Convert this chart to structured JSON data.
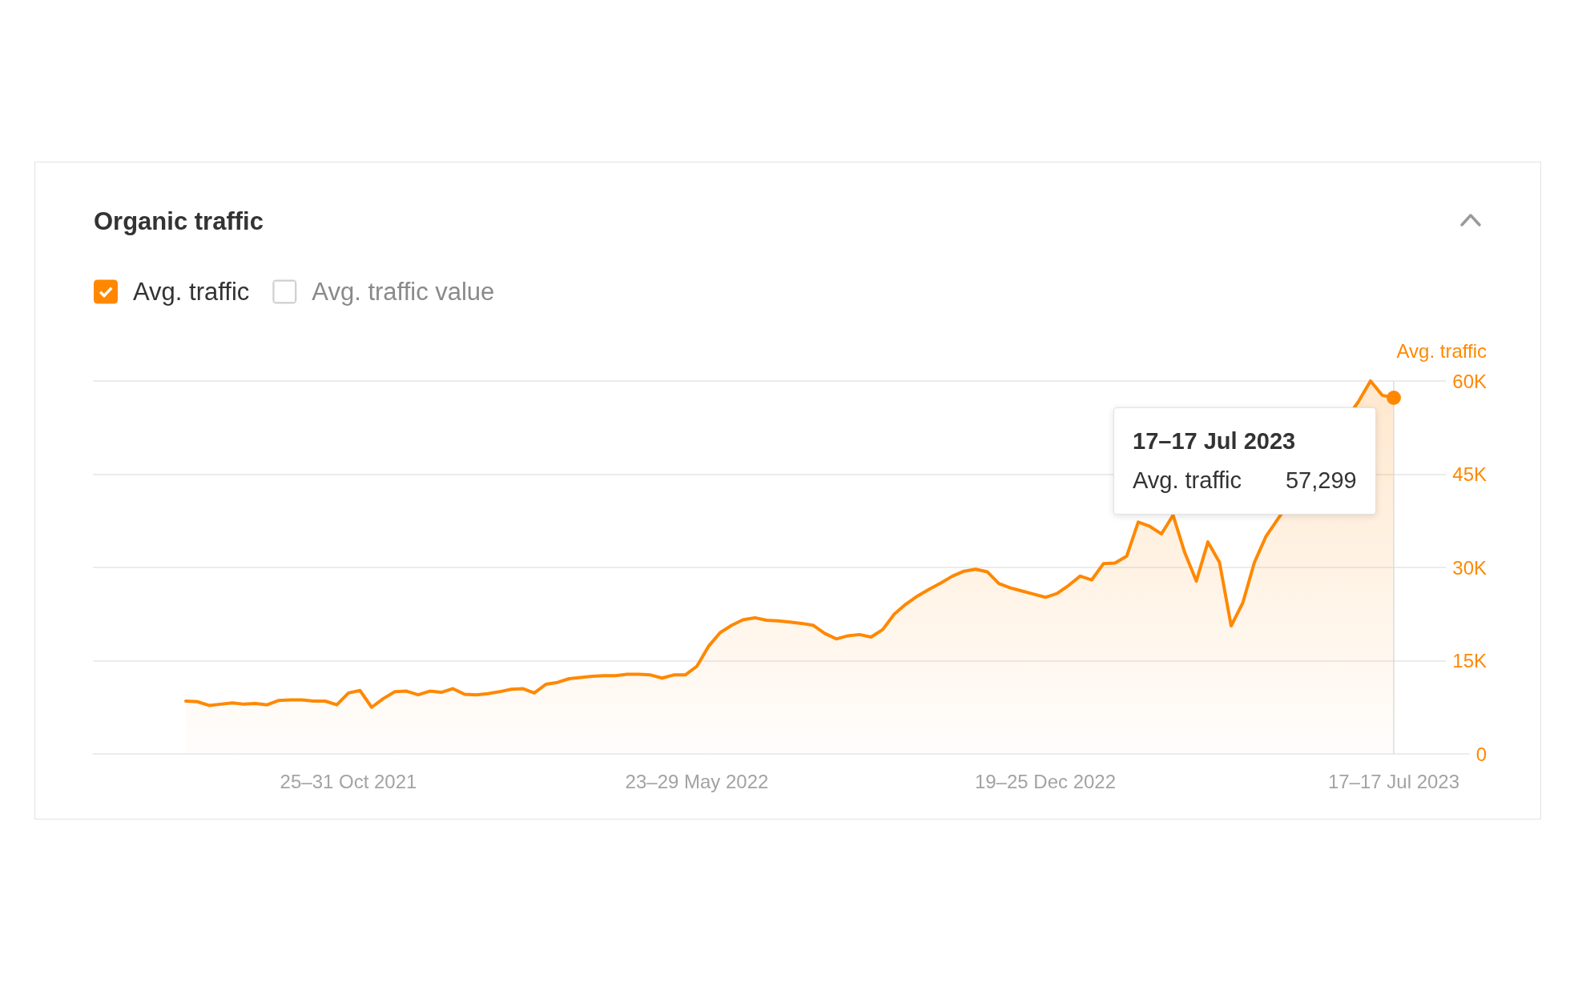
{
  "chart_data": {
    "type": "area",
    "title": "Organic traffic",
    "ylabel": "Avg. traffic",
    "x": [
      "2021-07-19",
      "2021-07-26",
      "2021-08-02",
      "2021-08-09",
      "2021-08-16",
      "2021-08-23",
      "2021-08-30",
      "2021-09-06",
      "2021-09-13",
      "2021-09-20",
      "2021-09-27",
      "2021-10-04",
      "2021-10-11",
      "2021-10-18",
      "2021-10-25",
      "2021-11-01",
      "2021-11-08",
      "2021-11-15",
      "2021-11-22",
      "2021-11-29",
      "2021-12-06",
      "2021-12-13",
      "2021-12-20",
      "2021-12-27",
      "2022-01-03",
      "2022-01-10",
      "2022-01-17",
      "2022-01-24",
      "2022-01-31",
      "2022-02-07",
      "2022-02-14",
      "2022-02-21",
      "2022-02-28",
      "2022-03-07",
      "2022-03-14",
      "2022-03-21",
      "2022-03-28",
      "2022-04-04",
      "2022-04-11",
      "2022-04-18",
      "2022-04-25",
      "2022-05-02",
      "2022-05-09",
      "2022-05-16",
      "2022-05-23",
      "2022-05-30",
      "2022-06-06",
      "2022-06-13",
      "2022-06-20",
      "2022-06-27",
      "2022-07-04",
      "2022-07-11",
      "2022-07-18",
      "2022-07-25",
      "2022-08-01",
      "2022-08-08",
      "2022-08-15",
      "2022-08-22",
      "2022-08-29",
      "2022-09-05",
      "2022-09-12",
      "2022-09-19",
      "2022-09-26",
      "2022-10-03",
      "2022-10-10",
      "2022-10-17",
      "2022-10-24",
      "2022-10-31",
      "2022-11-07",
      "2022-11-14",
      "2022-11-21",
      "2022-11-28",
      "2022-12-05",
      "2022-12-12",
      "2022-12-19",
      "2022-12-26",
      "2023-01-02",
      "2023-01-09",
      "2023-01-16",
      "2023-01-23",
      "2023-01-30",
      "2023-02-06",
      "2023-02-13",
      "2023-02-20",
      "2023-02-27",
      "2023-03-06",
      "2023-03-13",
      "2023-03-20",
      "2023-03-27",
      "2023-04-03",
      "2023-04-10",
      "2023-04-17",
      "2023-04-24",
      "2023-05-01",
      "2023-05-08",
      "2023-05-15",
      "2023-05-22",
      "2023-05-29",
      "2023-06-05",
      "2023-06-12",
      "2023-06-19",
      "2023-06-26",
      "2023-07-03",
      "2023-07-10",
      "2023-07-17"
    ],
    "series": [
      {
        "name": "Avg. traffic",
        "color": "#ff8800",
        "values": [
          8500,
          8400,
          7800,
          8000,
          8200,
          8000,
          8100,
          7900,
          8600,
          8700,
          8700,
          8500,
          8500,
          7900,
          9800,
          10200,
          7500,
          8900,
          10000,
          10100,
          9500,
          10100,
          9900,
          10500,
          9600,
          9500,
          9700,
          10000,
          10400,
          10500,
          9800,
          11200,
          11500,
          12100,
          12300,
          12500,
          12600,
          12600,
          12800,
          12800,
          12700,
          12200,
          12700,
          12700,
          14100,
          17300,
          19500,
          20700,
          21600,
          21900,
          21500,
          21400,
          21200,
          21000,
          20700,
          19400,
          18500,
          19000,
          19200,
          18800,
          20000,
          22500,
          24100,
          25400,
          26500,
          27500,
          28600,
          29400,
          29700,
          29300,
          27400,
          26700,
          26200,
          25700,
          25200,
          25800,
          27100,
          28600,
          28000,
          30600,
          30700,
          31800,
          37300,
          36600,
          35400,
          38400,
          32400,
          27800,
          34100,
          30800,
          20600,
          24300,
          30800,
          35000,
          null,
          null,
          null,
          null,
          null,
          null,
          null,
          56800,
          60000,
          57700,
          57299
        ]
      },
      {
        "name": "Avg. traffic value",
        "values": [
          null,
          null,
          null,
          null,
          null,
          null,
          null,
          null,
          null,
          null,
          null,
          null,
          null,
          null,
          null,
          null,
          null,
          null,
          null,
          null,
          null,
          null,
          null,
          null,
          null,
          null,
          null,
          null,
          null,
          null,
          null,
          null,
          null,
          null,
          null,
          null,
          null,
          null,
          null,
          null,
          null,
          null,
          null,
          null,
          null,
          null,
          null,
          null,
          null,
          null,
          null,
          null,
          null,
          null,
          null,
          null,
          null,
          null,
          null,
          null,
          null,
          null,
          null,
          null,
          null,
          null,
          null,
          null,
          null,
          null,
          null,
          null,
          null,
          null,
          null,
          null,
          null,
          null,
          null,
          null,
          null,
          null,
          null,
          null,
          null,
          null,
          null,
          null,
          null,
          null,
          null,
          null,
          null,
          null,
          null,
          null,
          null,
          null,
          null,
          null,
          null,
          null,
          null,
          null,
          null
        ]
      }
    ],
    "xlim": [
      "2021-05-24",
      "2023-09-11"
    ],
    "xticks": [
      {
        "value": "2021-10-25",
        "label": "25–31 Oct 2021"
      },
      {
        "value": "2022-05-23",
        "label": "23–29 May 2022"
      },
      {
        "value": "2022-12-19",
        "label": "19–25 Dec 2022"
      },
      {
        "value": "2023-07-17",
        "label": "17–17 Jul 2023"
      }
    ],
    "ylim": [
      0,
      60000
    ],
    "yticks": [
      0,
      {
        "value": 15000,
        "label": "15K"
      },
      {
        "value": 30000,
        "label": "30K"
      },
      {
        "value": 45000,
        "label": "45K"
      },
      {
        "value": 60000,
        "label": "60K"
      }
    ],
    "grid": "y",
    "legend": "top left",
    "ref_lines": [
      {
        "axis": "x",
        "value": "2023-07-17",
        "color": "#dddddd"
      }
    ],
    "annotations": [
      "17–17 Jul 2023",
      "Avg. traffic",
      "57,299"
    ]
  }
}
